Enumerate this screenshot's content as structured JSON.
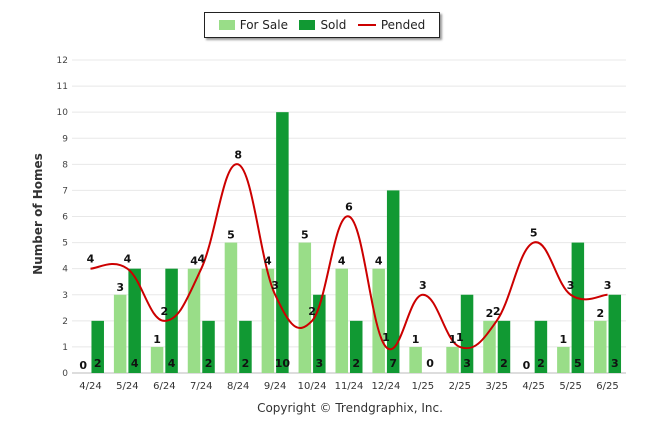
{
  "chart_data": {
    "type": "bar",
    "categories": [
      "4/24",
      "5/24",
      "6/24",
      "7/24",
      "8/24",
      "9/24",
      "10/24",
      "11/24",
      "12/24",
      "1/25",
      "2/25",
      "3/25",
      "4/25",
      "5/25",
      "6/25"
    ],
    "series": [
      {
        "name": "For Sale",
        "type": "bar",
        "color": "#99dd88",
        "values": [
          0,
          3,
          1,
          4,
          5,
          4,
          5,
          4,
          4,
          1,
          1,
          2,
          0,
          1,
          2
        ]
      },
      {
        "name": "Sold",
        "type": "bar",
        "color": "#119933",
        "values": [
          2,
          4,
          4,
          2,
          2,
          10,
          3,
          2,
          7,
          0,
          3,
          2,
          2,
          5,
          3
        ]
      },
      {
        "name": "Pended",
        "type": "line",
        "color": "#cc0000",
        "values": [
          4,
          4,
          2,
          4,
          8,
          3,
          2,
          6,
          1,
          3,
          1,
          2,
          5,
          3,
          3
        ]
      }
    ],
    "ylabel": "Number of Homes",
    "xlabel": "",
    "ylim": [
      0,
      12
    ],
    "yticks": [
      0,
      1,
      2,
      3,
      4,
      5,
      6,
      7,
      8,
      9,
      10,
      11,
      12
    ],
    "grid": true,
    "legend_position": "top-center"
  },
  "footer": "Copyright © Trendgraphix, Inc."
}
